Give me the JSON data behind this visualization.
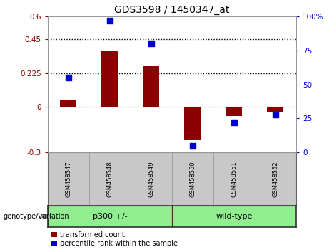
{
  "title": "GDS3598 / 1450347_at",
  "samples": [
    "GSM458547",
    "GSM458548",
    "GSM458549",
    "GSM458550",
    "GSM458551",
    "GSM458552"
  ],
  "red_bars": [
    0.05,
    0.37,
    0.27,
    -0.22,
    -0.06,
    -0.03
  ],
  "blue_dots": [
    55,
    97,
    80,
    5,
    22,
    28
  ],
  "ylim_left": [
    -0.3,
    0.6
  ],
  "ylim_right": [
    0,
    100
  ],
  "yticks_left": [
    -0.3,
    0,
    0.225,
    0.45,
    0.6
  ],
  "ytick_labels_left": [
    "-0.3",
    "0",
    "0.225",
    "0.45",
    "0.6"
  ],
  "yticks_right": [
    0,
    25,
    50,
    75,
    100
  ],
  "ytick_labels_right": [
    "0",
    "25",
    "50",
    "75",
    "100%"
  ],
  "hlines": [
    0.225,
    0.45
  ],
  "zero_line": 0,
  "bar_color": "#8B0000",
  "dot_color": "#0000CD",
  "bar_width": 0.4,
  "dot_size": 35,
  "legend_red": "transformed count",
  "legend_blue": "percentile rank within the sample",
  "genotype_label": "genotype/variation",
  "background_labels": "#C8C8C8",
  "group_color": "#90EE90",
  "p300_label": "p300 +/-",
  "wt_label": "wild-type"
}
